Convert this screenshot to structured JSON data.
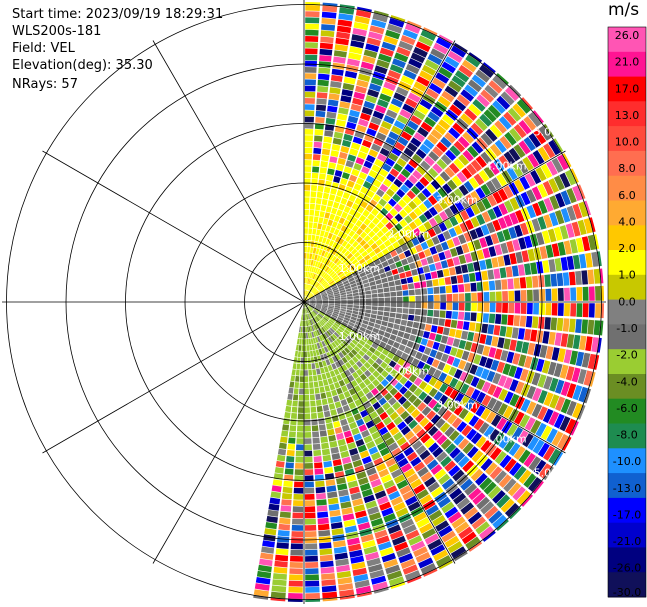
{
  "header": {
    "start_time": "Start time: 2023/09/19 18:29:31",
    "instrument": "WLS200s-181",
    "field": "Field: VEL",
    "elevation": "Elevation(deg): 35.30",
    "nrays": "NRays: 57"
  },
  "colorbar": {
    "unit": "m/s",
    "ticks": [
      "26.0",
      "21.0",
      "17.0",
      "13.0",
      "10.0",
      "8.0",
      "6.0",
      "4.0",
      "2.0",
      "1.0",
      "0.0",
      "-1.0",
      "-2.0",
      "-4.0",
      "-6.0",
      "-8.0",
      "-10.0",
      "-13.0",
      "-17.0",
      "-21.0",
      "-26.0",
      "-30.0"
    ],
    "colors": [
      "#ff55b4",
      "#ff1493",
      "#ff0000",
      "#ff2d2d",
      "#ff4b3c",
      "#ff6e50",
      "#ff8c46",
      "#ffaa32",
      "#ffc800",
      "#ffff00",
      "#c8c800",
      "#808080",
      "#707070",
      "#9acd32",
      "#6b8e23",
      "#228b22",
      "#1e8c50",
      "#1e90ff",
      "#1060d0",
      "#0000ff",
      "#0000cd",
      "#000080",
      "#10105a"
    ]
  },
  "chart_data": {
    "type": "heatmap",
    "projection": "polar PPI (radial velocity)",
    "field": "VEL",
    "units": "m/s",
    "elevation_deg": 35.3,
    "nrays": 57,
    "azimuth_coverage_deg": [
      0,
      190
    ],
    "range_ring_labels": [
      "1.00km",
      "2.00km",
      "3.00km",
      "4.00km",
      "5.00km"
    ],
    "color_scale": [
      -30,
      26
    ],
    "near_range_pattern": [
      {
        "azimuth_sector": "0-60",
        "range": "0-2.5km",
        "dominant_velocity": "2.0 to 4.0"
      },
      {
        "azimuth_sector": "60-120",
        "range": "0-1.8km",
        "dominant_velocity": "-1.0 to 0.0"
      },
      {
        "azimuth_sector": "120-190",
        "range": "0-3km",
        "dominant_velocity": "-2.0 to -4.0"
      }
    ],
    "far_range_pattern": "noise (mixed values -30 to 26)",
    "grid": true
  }
}
